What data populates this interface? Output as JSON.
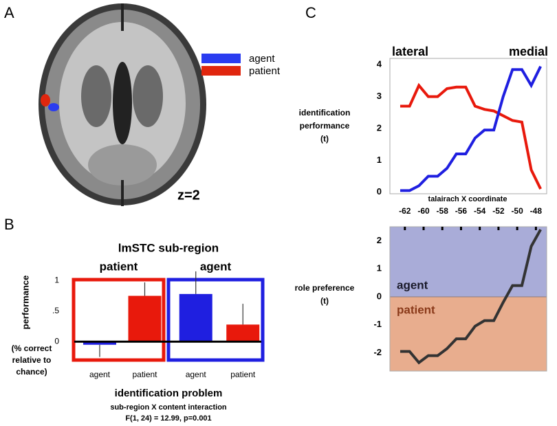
{
  "figure": {
    "panel_labels": [
      "A",
      "B",
      "C"
    ],
    "brain": {
      "legend": [
        {
          "name": "agent",
          "color": "#2a3cf0"
        },
        {
          "name": "patient",
          "color": "#e0260e"
        }
      ],
      "slice_label": "z=2"
    }
  },
  "chart_data": [
    {
      "type": "bar",
      "title": "lmSTC sub-region",
      "groups": [
        {
          "name": "patient",
          "color": "#e8190c"
        },
        {
          "name": "agent",
          "color": "#1f1fe0"
        }
      ],
      "categories": [
        "agent",
        "patient",
        "agent",
        "patient"
      ],
      "values": [
        -0.05,
        0.75,
        0.78,
        0.28
      ],
      "errors": [
        0.2,
        0.22,
        0.37,
        0.34
      ],
      "colors": [
        "#1f1fe0",
        "#e8190c",
        "#1f1fe0",
        "#e8190c"
      ],
      "ylim": [
        -0.3,
        1.3
      ],
      "yticks": [
        0,
        {
          "value": 0.5,
          "label": ".5"
        },
        1
      ],
      "y_label": "performance",
      "y_label_note": [
        "(% correct",
        "relative to",
        "chance)"
      ],
      "x_label": "identification problem",
      "notes": [
        "sub-region X content interaction",
        "F(1, 24) = 12.99, p=0.001"
      ]
    },
    {
      "type": "line",
      "x": [
        -62.5,
        -61.5,
        -60.5,
        -59.5,
        -58.5,
        -57.5,
        -56.5,
        -55.5,
        -54.5,
        -53.5,
        -52.5,
        -51.5,
        -50.5,
        -49.5,
        -48.5,
        -47.5
      ],
      "series": [
        {
          "color": "#e8190c",
          "values": [
            2.7,
            2.7,
            3.35,
            3.0,
            3.0,
            3.25,
            3.3,
            3.3,
            2.7,
            2.6,
            2.55,
            2.4,
            2.25,
            2.2,
            0.7,
            0.1
          ]
        },
        {
          "color": "#1f1fe0",
          "values": [
            0.05,
            0.05,
            0.2,
            0.5,
            0.5,
            0.75,
            1.2,
            1.2,
            1.7,
            1.95,
            1.95,
            3.0,
            3.85,
            3.85,
            3.35,
            3.95
          ]
        }
      ],
      "xlim": [
        -63.6,
        -46.85
      ],
      "ylim": [
        -0.05,
        4.2
      ],
      "yticks": [
        0,
        1,
        2,
        3,
        4
      ],
      "y_label": [
        "identification",
        "performance",
        "(t)"
      ],
      "annotations": [
        "lateral",
        "medial"
      ]
    },
    {
      "type": "line",
      "x": [
        -62.5,
        -61.5,
        -60.5,
        -59.5,
        -58.5,
        -57.5,
        -56.5,
        -55.5,
        -54.5,
        -53.5,
        -52.5,
        -51.5,
        -50.5,
        -49.5,
        -48.5,
        -47.5
      ],
      "series": [
        {
          "color": "#333333",
          "values": [
            -1.95,
            -1.95,
            -2.35,
            -2.1,
            -2.1,
            -1.85,
            -1.5,
            -1.5,
            -1.05,
            -0.85,
            -0.85,
            -0.2,
            0.4,
            0.4,
            1.8,
            2.4
          ]
        }
      ],
      "regions": [
        {
          "label": "agent",
          "color": "#a9acd8",
          "text_color": "#1a1a2a"
        },
        {
          "label": "patient",
          "color": "#e8ad8e",
          "text_color": "#8a3a1a"
        }
      ],
      "xlim": [
        -63.6,
        -46.85
      ],
      "ylim": [
        -2.65,
        2.5
      ],
      "yticks": [
        -2,
        -1,
        0,
        1,
        2
      ],
      "xticks": [
        -62,
        -60,
        -58,
        -56,
        -54,
        -52,
        -50,
        -48
      ],
      "x_label": "talairach X coordinate",
      "y_label": [
        "role preference",
        "(t)"
      ]
    }
  ]
}
